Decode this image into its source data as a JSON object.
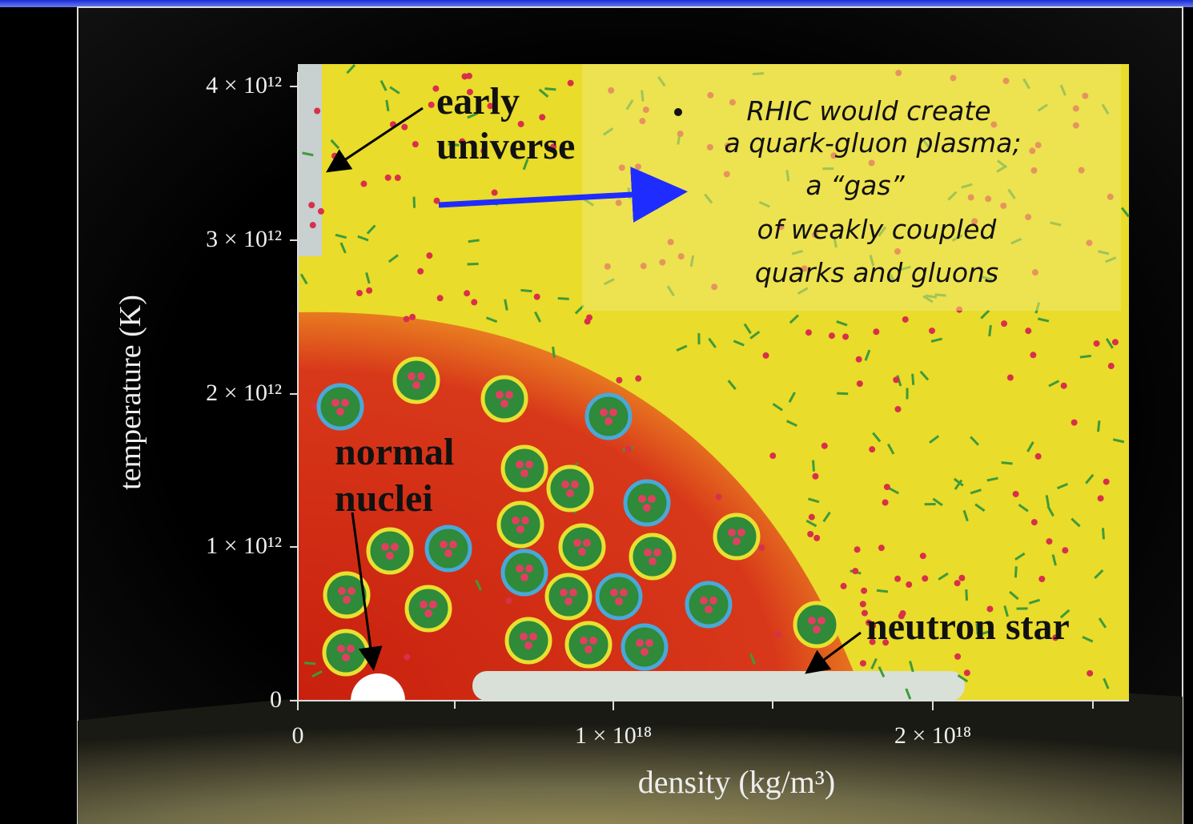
{
  "diagram": {
    "y_axis_label": "temperature (K)",
    "x_axis_label": "density (kg/m³)",
    "y_ticks": [
      "0",
      "1 × 10¹²",
      "2 × 10¹²",
      "3 × 10¹²",
      "4 × 10¹²"
    ],
    "x_ticks": [
      "0",
      "1 × 10¹⁸",
      "2 × 10¹⁸"
    ],
    "regions": [
      {
        "lines": [
          "early",
          "universe"
        ]
      },
      {
        "lines": [
          "normal",
          "nuclei"
        ]
      },
      {
        "lines": [
          "neutron star"
        ]
      }
    ]
  },
  "bullet": {
    "lines": [
      "RHIC would create",
      "a quark-gluon plasma;",
      "a “gas”",
      "of weakly coupled",
      "quarks and gluons"
    ]
  }
}
